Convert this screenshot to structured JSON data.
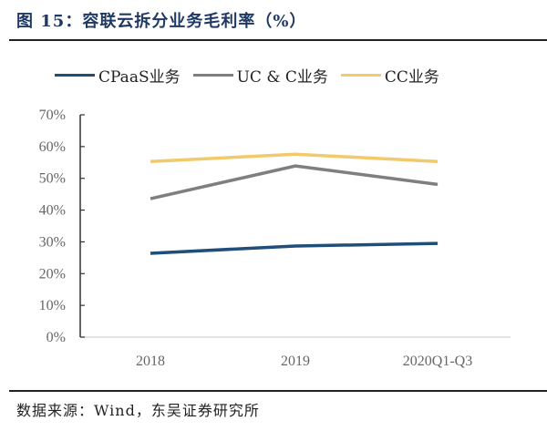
{
  "title": "图 15：容联云拆分业务毛利率（%）",
  "source": "数据来源：Wind，东吴证券研究所",
  "chart_data": {
    "type": "line",
    "title": "图 15：容联云拆分业务毛利率（%）",
    "xlabel": "",
    "ylabel": "",
    "categories": [
      "2018",
      "2019",
      "2020Q1-Q3"
    ],
    "ylim": [
      0,
      70
    ],
    "yticks": [
      0,
      10,
      20,
      30,
      40,
      50,
      60,
      70
    ],
    "ytick_labels": [
      "0%",
      "10%",
      "20%",
      "30%",
      "40%",
      "50%",
      "60%",
      "70%"
    ],
    "grid": false,
    "legend_position": "top",
    "series": [
      {
        "name": "CPaaS业务",
        "color": "#1f4e79",
        "values": [
          26.4,
          28.7,
          29.5
        ]
      },
      {
        "name": "UC & C业务",
        "color": "#7f7f7f",
        "values": [
          43.6,
          53.9,
          48.1
        ]
      },
      {
        "name": "CC业务",
        "color": "#f2c96b",
        "values": [
          55.3,
          57.6,
          55.3
        ]
      }
    ]
  }
}
